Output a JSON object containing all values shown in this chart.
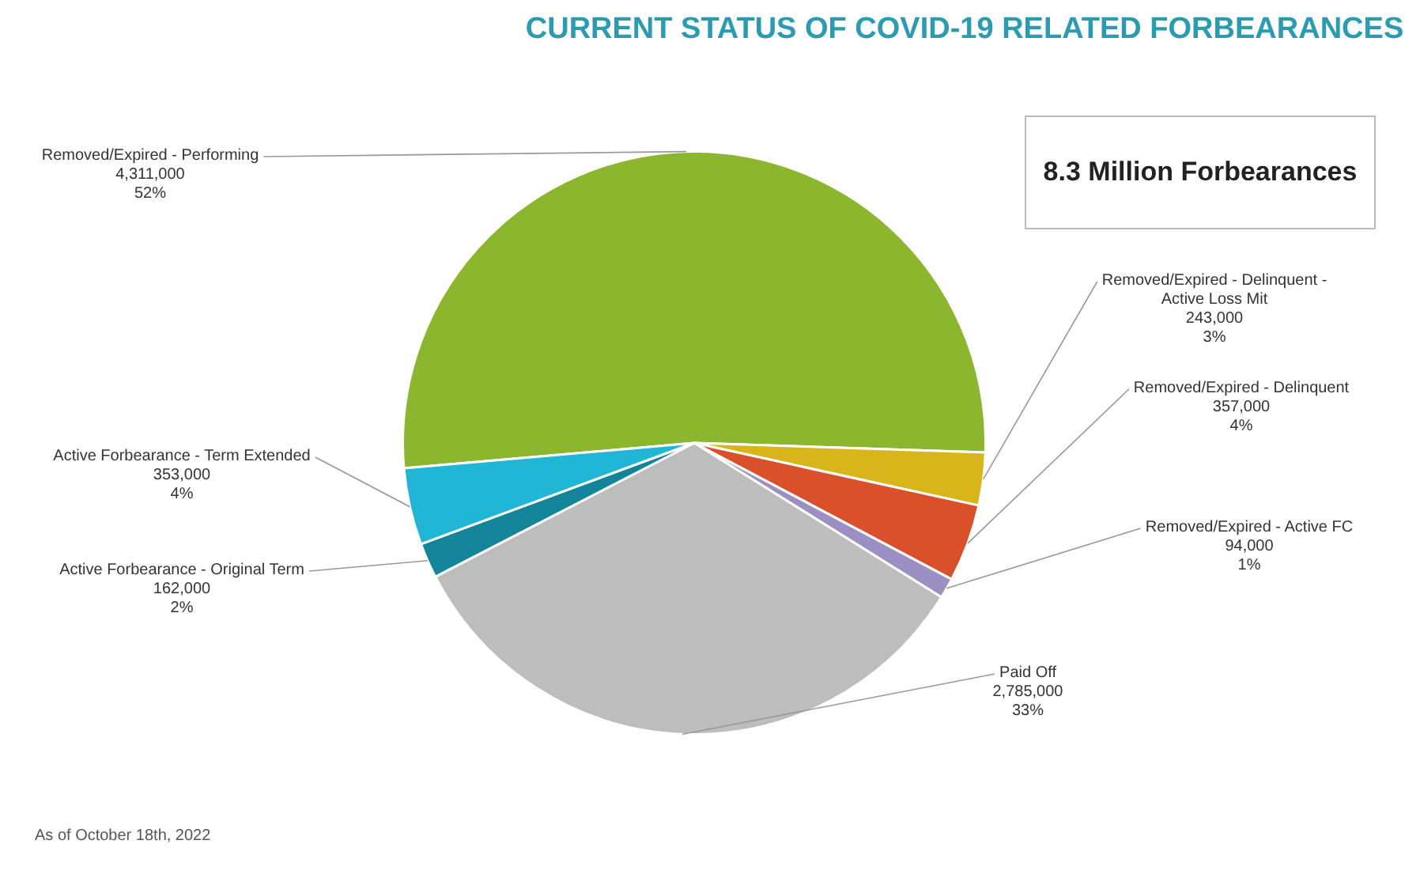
{
  "chart_data": {
    "type": "pie",
    "title": "CURRENT STATUS OF COVID-19 RELATED FORBEARANCES",
    "categories": [
      "Removed/Expired - Performing",
      "Removed/Expired - Delinquent - Active Loss Mit",
      "Removed/Expired - Delinquent",
      "Removed/Expired - Active FC",
      "Paid Off",
      "Active Forbearance - Original Term",
      "Active Forbearance - Term Extended"
    ],
    "values": [
      4311000,
      243000,
      357000,
      94000,
      2785000,
      162000,
      353000
    ],
    "colors": [
      "#8bb62d",
      "#d9b51c",
      "#d9502a",
      "#9b8fc4",
      "#bdbdbd",
      "#13849a",
      "#21b6d6"
    ],
    "value_labels": [
      "4,311,000\n52%",
      "243,000\n3%",
      "357,000\n4%",
      "94,000\n1%",
      "2,785,000\n33%",
      "162,000\n2%",
      "353,000\n4%"
    ],
    "legend": false,
    "annotations": [
      "8.3 Million Forbearances",
      "As of October 18th, 2022"
    ]
  }
}
